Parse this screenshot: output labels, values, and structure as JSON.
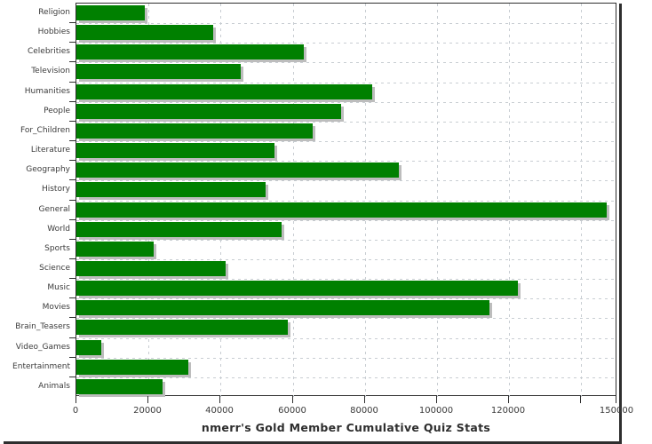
{
  "chart_data": {
    "type": "bar",
    "orientation": "horizontal",
    "title": "nmerr's Gold Member Cumulative Quiz Stats",
    "xlabel": "",
    "ylabel": "",
    "xlim": [
      0,
      150000
    ],
    "grid": true,
    "legend": "none",
    "categories": [
      "Religion",
      "Hobbies",
      "Celebrities",
      "Television",
      "Humanities",
      "People",
      "For_Children",
      "Literature",
      "Geography",
      "History",
      "General",
      "World",
      "Sports",
      "Science",
      "Music",
      "Movies",
      "Brain_Teasers",
      "Video_Games",
      "Entertainment",
      "Animals"
    ],
    "values": [
      19000,
      38000,
      63000,
      45500,
      82000,
      73500,
      65500,
      55000,
      89500,
      52500,
      147000,
      57000,
      21500,
      41500,
      122500,
      114500,
      58500,
      7000,
      31000,
      24000
    ],
    "x_ticks": [
      {
        "value": 0,
        "label": "0"
      },
      {
        "value": 20000,
        "label": "20000"
      },
      {
        "value": 40000,
        "label": "40000"
      },
      {
        "value": 60000,
        "label": "60000"
      },
      {
        "value": 80000,
        "label": "80000"
      },
      {
        "value": 100000,
        "label": "100000"
      },
      {
        "value": 120000,
        "label": "120000"
      },
      {
        "value": 140000,
        "label": ""
      },
      {
        "value": 150000,
        "label": "150000"
      }
    ],
    "colors": {
      "bar": "#008000",
      "bar_shadow": "#bdbdbd",
      "grid": "#c8cdd2",
      "axis": "#2f2f2f",
      "text": "#3b3b3b",
      "title_text": "#2e2e2e",
      "frame_shadow": "#2e2e2e",
      "background": "#ffffff"
    }
  }
}
